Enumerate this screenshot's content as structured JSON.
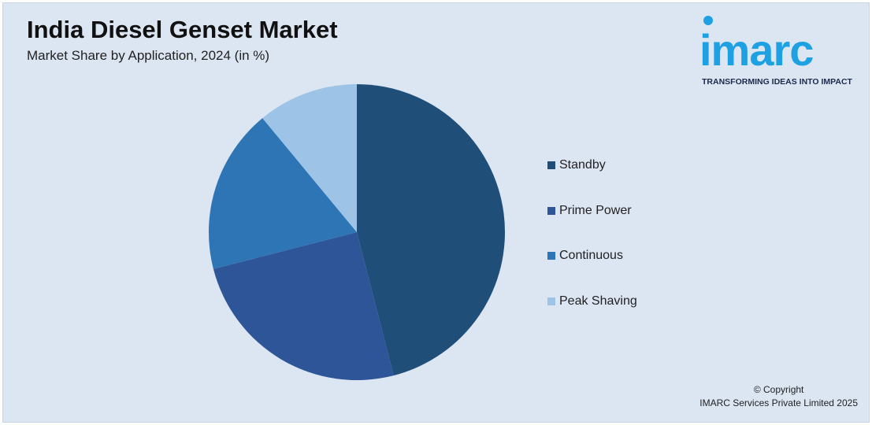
{
  "header": {
    "title": "India Diesel Genset Market",
    "subtitle": "Market Share by Application, 2024 (in %)"
  },
  "logo": {
    "word": "imarc",
    "tagline": "TRANSFORMING IDEAS INTO IMPACT"
  },
  "chart_data": {
    "type": "pie",
    "title": "India Diesel Genset Market",
    "subtitle": "Market Share by Application, 2024 (in %)",
    "categories": [
      "Standby",
      "Prime Power",
      "Continuous",
      "Peak Shaving"
    ],
    "values": [
      46,
      25,
      18,
      11
    ],
    "colors": [
      "#1f4e79",
      "#2e5597",
      "#2e75b6",
      "#9dc3e6"
    ],
    "legend_position": "right"
  },
  "footer": {
    "copyright": "© Copyright",
    "company": "IMARC Services Private Limited 2025"
  }
}
